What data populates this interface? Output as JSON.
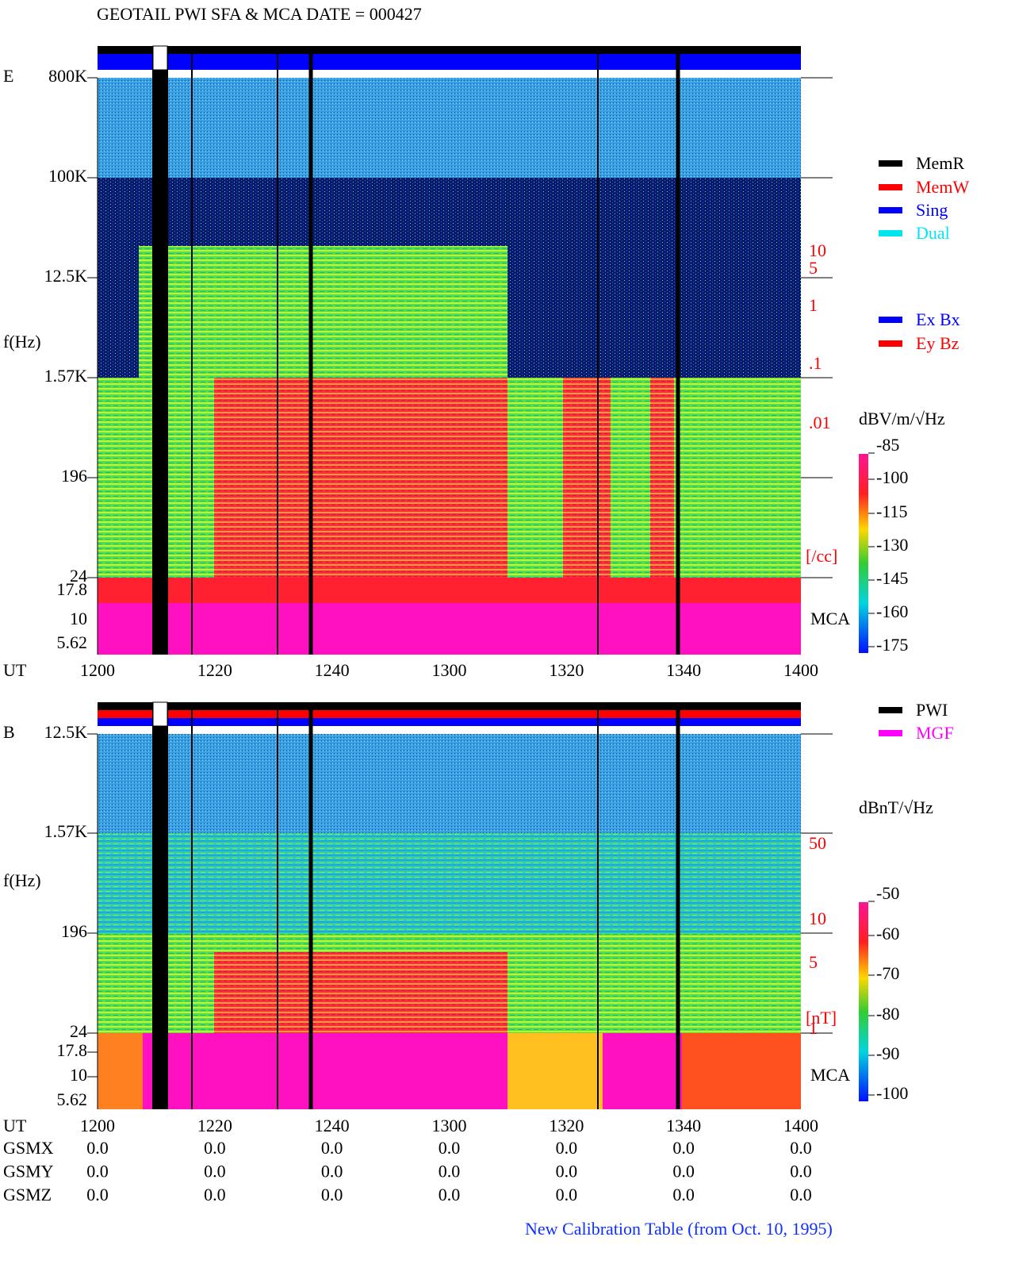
{
  "header": {
    "title": "GEOTAIL  PWI SFA & MCA   DATE = 000427"
  },
  "panels": [
    {
      "label": "E",
      "y_axis_label": "f(Hz)",
      "yticks": [
        "800K",
        "100K",
        "12.5K",
        "1.57K",
        "196",
        "24",
        "17.8",
        "10",
        "5.62"
      ],
      "x_axis_label": "UT",
      "xticks": [
        "1200",
        "1220",
        "1240",
        "1300",
        "1320",
        "1340",
        "1400"
      ],
      "legend_top": [
        {
          "name": "MemR",
          "color": "#000000"
        },
        {
          "name": "MemW",
          "color": "#ff0000"
        },
        {
          "name": "Sing",
          "color": "#0000ff"
        },
        {
          "name": "Dual",
          "color": "#00e5ee"
        }
      ],
      "legend_bottom": [
        {
          "name": "Ex Bx",
          "color": "#0000ff"
        },
        {
          "name": "Ey Bz",
          "color": "#ff0000"
        }
      ],
      "density_ticks": [
        "10",
        "5",
        "1",
        ".1",
        ".01"
      ],
      "density_unit": "[/cc]",
      "mca_label": "MCA",
      "colorbar": {
        "unit": "dBV/m/√Hz",
        "ticks": [
          "-85",
          "-100",
          "-115",
          "-130",
          "-145",
          "-160",
          "-175"
        ]
      }
    },
    {
      "label": "B",
      "y_axis_label": "f(Hz)",
      "yticks": [
        "12.5K",
        "1.57K",
        "196",
        "24",
        "17.8",
        "10",
        "5.62"
      ],
      "x_axis_label": "UT",
      "xticks": [
        "1200",
        "1220",
        "1240",
        "1300",
        "1320",
        "1340",
        "1400"
      ],
      "legend_top": [
        {
          "name": "PWI",
          "color": "#000000"
        },
        {
          "name": "MGF",
          "color": "#ff00ff"
        }
      ],
      "legend_bottom": [],
      "density_ticks": [
        "50",
        "10",
        "5",
        "1"
      ],
      "density_unit": "[nT]",
      "mca_label": "MCA",
      "colorbar": {
        "unit": "dBnT/√Hz",
        "ticks": [
          "-50",
          "-60",
          "-70",
          "-80",
          "-90",
          "-100"
        ]
      }
    }
  ],
  "orbit": {
    "rows": [
      {
        "label": "GSMX",
        "values": [
          "0.0",
          "0.0",
          "0.0",
          "0.0",
          "0.0",
          "0.0",
          "0.0"
        ]
      },
      {
        "label": "GSMY",
        "values": [
          "0.0",
          "0.0",
          "0.0",
          "0.0",
          "0.0",
          "0.0",
          "0.0"
        ]
      },
      {
        "label": "GSMZ",
        "values": [
          "0.0",
          "0.0",
          "0.0",
          "0.0",
          "0.0",
          "0.0",
          "0.0"
        ]
      }
    ]
  },
  "footer": "New Calibration Table (from Oct. 10, 1995)"
}
